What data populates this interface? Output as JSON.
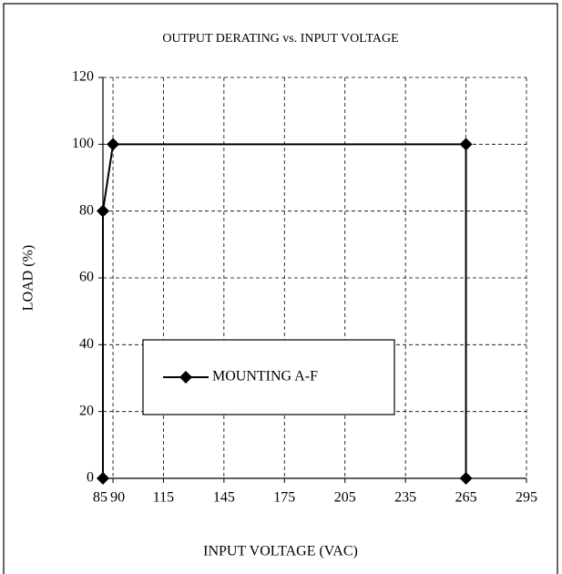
{
  "chart_data": {
    "type": "line",
    "title": "OUTPUT DERATING vs. INPUT VOLTAGE",
    "x_label": "INPUT VOLTAGE (VAC)",
    "y_label": "LOAD (%)",
    "series": [
      {
        "name": "MOUNTING A-F",
        "color": "#000000",
        "x": [
          85,
          85,
          90,
          265,
          265
        ],
        "values": [
          0,
          80,
          100,
          100,
          0
        ]
      }
    ],
    "xlim": [
      85,
      295
    ],
    "xticks": [
      85,
      90,
      115,
      145,
      175,
      205,
      235,
      265,
      295
    ],
    "ylim": [
      0,
      120
    ],
    "yticks": [
      0,
      20,
      40,
      60,
      80,
      100,
      120
    ],
    "grid": true,
    "legend": "lower left"
  }
}
